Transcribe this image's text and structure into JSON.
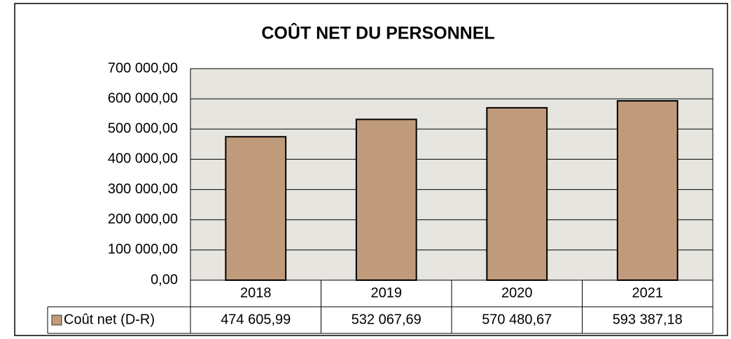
{
  "chart_data": {
    "type": "bar",
    "title": "COÛT NET DU PERSONNEL",
    "categories": [
      "2018",
      "2019",
      "2020",
      "2021"
    ],
    "series": [
      {
        "name": "Coût net (D-R)",
        "color": "#c09b7b",
        "values": [
          474605.99,
          532067.69,
          570480.67,
          593387.18
        ],
        "value_labels": [
          "474 605,99",
          "532 067,69",
          "570 480,67",
          "593 387,18"
        ]
      }
    ],
    "ylim": [
      0,
      700000
    ],
    "yticks": [
      {
        "value": 0,
        "label": "0,00"
      },
      {
        "value": 100000,
        "label": "100 000,00"
      },
      {
        "value": 200000,
        "label": "200 000,00"
      },
      {
        "value": 300000,
        "label": "300 000,00"
      },
      {
        "value": 400000,
        "label": "400 000,00"
      },
      {
        "value": 500000,
        "label": "500 000,00"
      },
      {
        "value": 600000,
        "label": "600 000,00"
      },
      {
        "value": 700000,
        "label": "700 000,00"
      }
    ],
    "grid": true,
    "data_table": true
  }
}
